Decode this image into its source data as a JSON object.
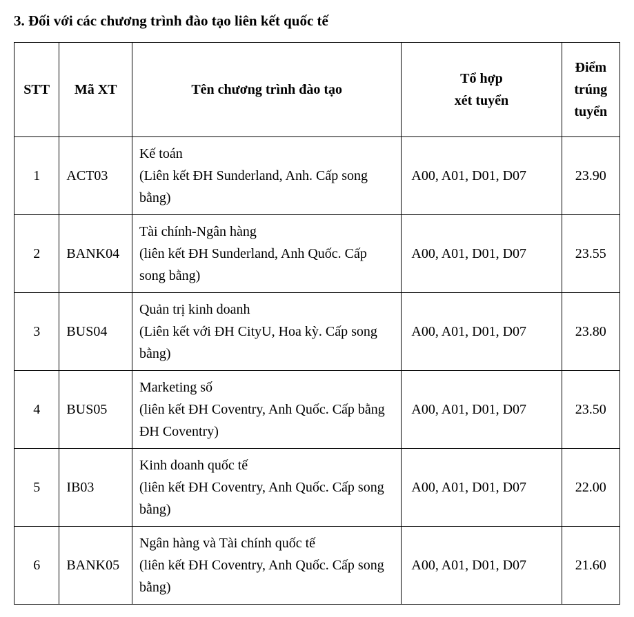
{
  "title": "3. Đối với các chương trình đào tạo liên kết quốc tế",
  "table": {
    "columns": {
      "stt": "STT",
      "code": "Mã XT",
      "name": "Tên chương trình đào tạo",
      "combo_line1": "Tổ hợp",
      "combo_line2": "xét tuyển",
      "score": "Điểm trúng tuyển"
    },
    "rows": [
      {
        "stt": "1",
        "code": "ACT03",
        "name": "Kế toán\n(Liên kết ĐH Sunderland, Anh. Cấp song bằng)",
        "combo": "A00, A01, D01, D07",
        "score": "23.90"
      },
      {
        "stt": "2",
        "code": "BANK04",
        "name": "Tài chính-Ngân hàng\n(liên kết ĐH Sunderland, Anh Quốc. Cấp song bằng)",
        "combo": "A00, A01, D01, D07",
        "score": "23.55"
      },
      {
        "stt": "3",
        "code": "BUS04",
        "name": "Quản trị kinh doanh\n(Liên kết với ĐH CityU, Hoa kỳ. Cấp song bằng)",
        "combo": "A00, A01, D01, D07",
        "score": "23.80"
      },
      {
        "stt": "4",
        "code": "BUS05",
        "name": "Marketing số\n(liên kết ĐH Coventry, Anh Quốc. Cấp bằng ĐH Coventry)",
        "combo": "A00, A01, D01, D07",
        "score": "23.50"
      },
      {
        "stt": "5",
        "code": "IB03",
        "name": "Kinh doanh quốc tế\n(liên kết ĐH Coventry, Anh Quốc. Cấp song bằng)",
        "combo": "A00, A01, D01, D07",
        "score": "22.00"
      },
      {
        "stt": "6",
        "code": "BANK05",
        "name": "Ngân hàng và Tài chính quốc tế\n(liên kết ĐH Coventry, Anh Quốc. Cấp song bằng)",
        "combo": "A00, A01, D01, D07",
        "score": "21.60"
      }
    ]
  }
}
